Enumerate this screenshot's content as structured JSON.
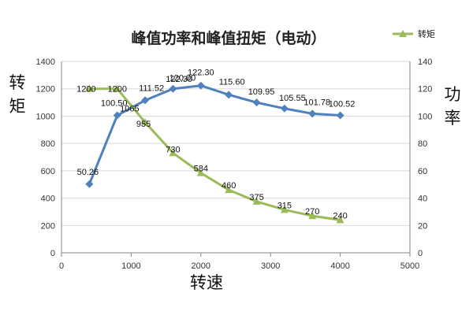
{
  "chart_data": {
    "type": "line",
    "title": "峰值功率和峰值扭矩（电动）",
    "xlabel": "转速",
    "ylabel_left": "转矩",
    "ylabel_right": "功率",
    "xlim": [
      0,
      5000
    ],
    "xticks": [
      "0",
      "1000",
      "2000",
      "3000",
      "4000",
      "5000"
    ],
    "ylim_left": [
      0,
      1400
    ],
    "yticks_left": [
      "0",
      "200",
      "400",
      "600",
      "800",
      "1000",
      "1200",
      "1400"
    ],
    "ylim_right": [
      0,
      140
    ],
    "yticks_right": [
      "0",
      "20",
      "40",
      "60",
      "80",
      "100",
      "120",
      "140"
    ],
    "grid": true,
    "legend_position": "top-right",
    "series": [
      {
        "name": "",
        "axis": "right",
        "color": "#4f81bd",
        "marker": "diamond",
        "x": [
          400,
          800,
          1200,
          1600,
          2000,
          2400,
          2800,
          3200,
          3600,
          4000
        ],
        "y": [
          50.26,
          100.5,
          111.52,
          120.0,
          122.3,
          115.6,
          109.95,
          105.55,
          101.78,
          100.52
        ],
        "labels": [
          "50.26",
          "100.50",
          "111.52",
          "120.00",
          "122.30",
          "115.60",
          "109.95",
          "105.55",
          "101.78",
          "100.52"
        ]
      },
      {
        "name": "转矩",
        "axis": "left",
        "color": "#9bbb59",
        "marker": "triangle",
        "x": [
          400,
          800,
          1200,
          1600,
          2000,
          2400,
          2800,
          3200,
          3600,
          4000
        ],
        "y": [
          1200,
          1200,
          955,
          730,
          584,
          460,
          375,
          315,
          270,
          240
        ],
        "labels": [
          "1200",
          "1200",
          "955",
          "730",
          "584",
          "460",
          "375",
          "315",
          "270",
          "240"
        ]
      }
    ],
    "extra_labels": [
      {
        "text": "1065"
      },
      {
        "text": "122.30"
      }
    ]
  }
}
